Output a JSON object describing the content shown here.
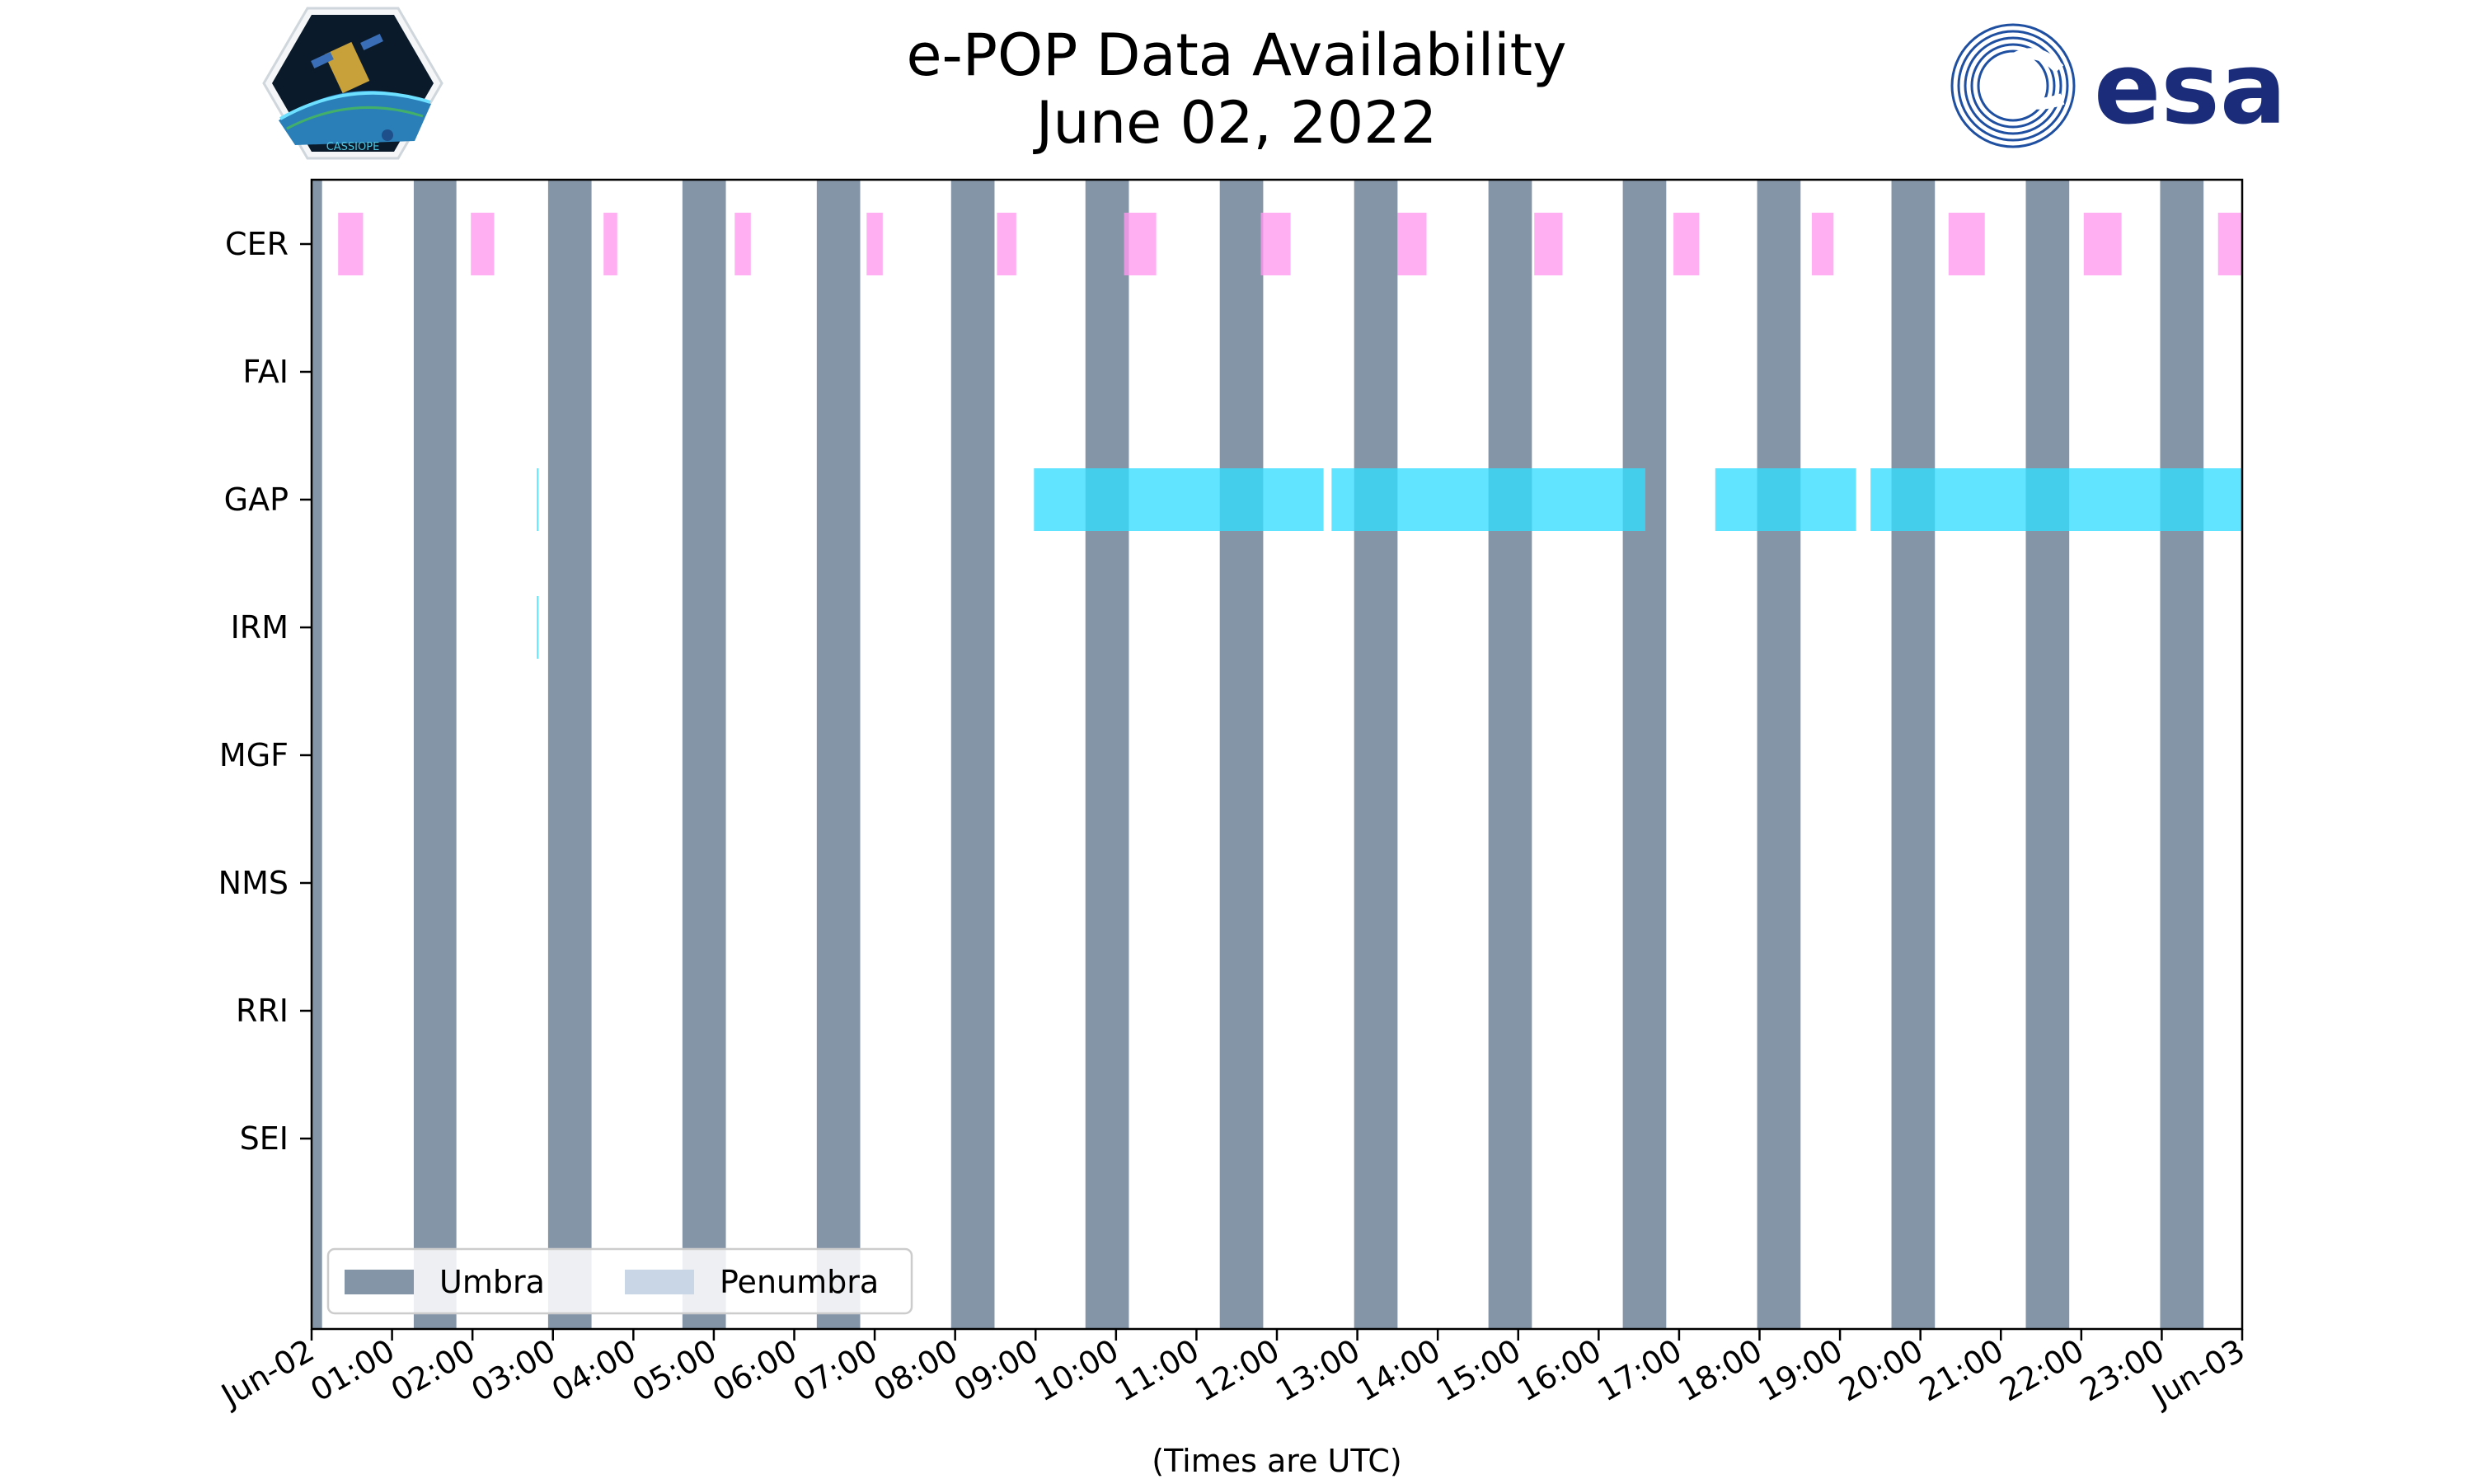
{
  "logos": {
    "left": {
      "name": "CASSIOPE mission logo",
      "text": "CASSIOPE"
    },
    "right": {
      "name": "ESA logo",
      "text": "esa"
    }
  },
  "chart_data": {
    "type": "timeline",
    "title": "e-POP Data Availability",
    "subtitle": "June 02, 2022",
    "xlabel": "(Times are UTC)",
    "xlim_hours": [
      0,
      24
    ],
    "x_ticks": [
      {
        "h": 0,
        "label": "Jun-02"
      },
      {
        "h": 1,
        "label": "01:00"
      },
      {
        "h": 2,
        "label": "02:00"
      },
      {
        "h": 3,
        "label": "03:00"
      },
      {
        "h": 4,
        "label": "04:00"
      },
      {
        "h": 5,
        "label": "05:00"
      },
      {
        "h": 6,
        "label": "06:00"
      },
      {
        "h": 7,
        "label": "07:00"
      },
      {
        "h": 8,
        "label": "08:00"
      },
      {
        "h": 9,
        "label": "09:00"
      },
      {
        "h": 10,
        "label": "10:00"
      },
      {
        "h": 11,
        "label": "11:00"
      },
      {
        "h": 12,
        "label": "12:00"
      },
      {
        "h": 13,
        "label": "13:00"
      },
      {
        "h": 14,
        "label": "14:00"
      },
      {
        "h": 15,
        "label": "15:00"
      },
      {
        "h": 16,
        "label": "16:00"
      },
      {
        "h": 17,
        "label": "17:00"
      },
      {
        "h": 18,
        "label": "18:00"
      },
      {
        "h": 19,
        "label": "19:00"
      },
      {
        "h": 20,
        "label": "20:00"
      },
      {
        "h": 21,
        "label": "21:00"
      },
      {
        "h": 22,
        "label": "22:00"
      },
      {
        "h": 23,
        "label": "23:00"
      },
      {
        "h": 24,
        "label": "Jun-03"
      }
    ],
    "instruments": [
      "CER",
      "FAI",
      "GAP",
      "IRM",
      "MGF",
      "NMS",
      "RRI",
      "SEI"
    ],
    "umbra_intervals": [
      [
        0.0,
        0.13
      ],
      [
        1.27,
        1.8
      ],
      [
        2.94,
        3.48
      ],
      [
        4.61,
        5.15
      ],
      [
        6.28,
        6.82
      ],
      [
        7.95,
        8.49
      ],
      [
        9.62,
        10.16
      ],
      [
        11.29,
        11.83
      ],
      [
        12.96,
        13.5
      ],
      [
        14.63,
        15.17
      ],
      [
        16.3,
        16.84
      ],
      [
        17.97,
        18.51
      ],
      [
        19.64,
        20.18
      ],
      [
        21.31,
        21.85
      ],
      [
        22.98,
        23.52
      ]
    ],
    "penumbra_intervals": [],
    "availability": {
      "CER": {
        "color": "#ff99ee",
        "intervals": [
          [
            0.33,
            0.64
          ],
          [
            1.98,
            2.27
          ],
          [
            3.63,
            3.8
          ],
          [
            5.26,
            5.46
          ],
          [
            6.9,
            7.1
          ],
          [
            8.52,
            8.76
          ],
          [
            10.1,
            10.5
          ],
          [
            11.8,
            12.17
          ],
          [
            13.5,
            13.86
          ],
          [
            15.2,
            15.55
          ],
          [
            16.93,
            17.25
          ],
          [
            18.65,
            18.92
          ],
          [
            20.35,
            20.8
          ],
          [
            22.03,
            22.5
          ],
          [
            23.7,
            24.0
          ]
        ]
      },
      "FAI": {
        "color": "#33ddff",
        "intervals": []
      },
      "GAP": {
        "color": "#33ddff",
        "intervals": [
          [
            2.8,
            2.82
          ],
          [
            8.98,
            12.58
          ],
          [
            12.68,
            16.58
          ],
          [
            17.45,
            19.2
          ],
          [
            19.38,
            24.0
          ]
        ]
      },
      "IRM": {
        "color": "#33ddff",
        "intervals": [
          [
            2.8,
            2.82
          ]
        ]
      },
      "MGF": {
        "color": "#33ddff",
        "intervals": []
      },
      "NMS": {
        "color": "#33ddff",
        "intervals": []
      },
      "RRI": {
        "color": "#33ddff",
        "intervals": []
      },
      "SEI": {
        "color": "#33ddff",
        "intervals": []
      }
    },
    "legend": {
      "position": "lower-left",
      "entries": [
        {
          "label": "Umbra",
          "color": "#8595a8"
        },
        {
          "label": "Penumbra",
          "color": "#c8d6e6"
        }
      ]
    }
  }
}
